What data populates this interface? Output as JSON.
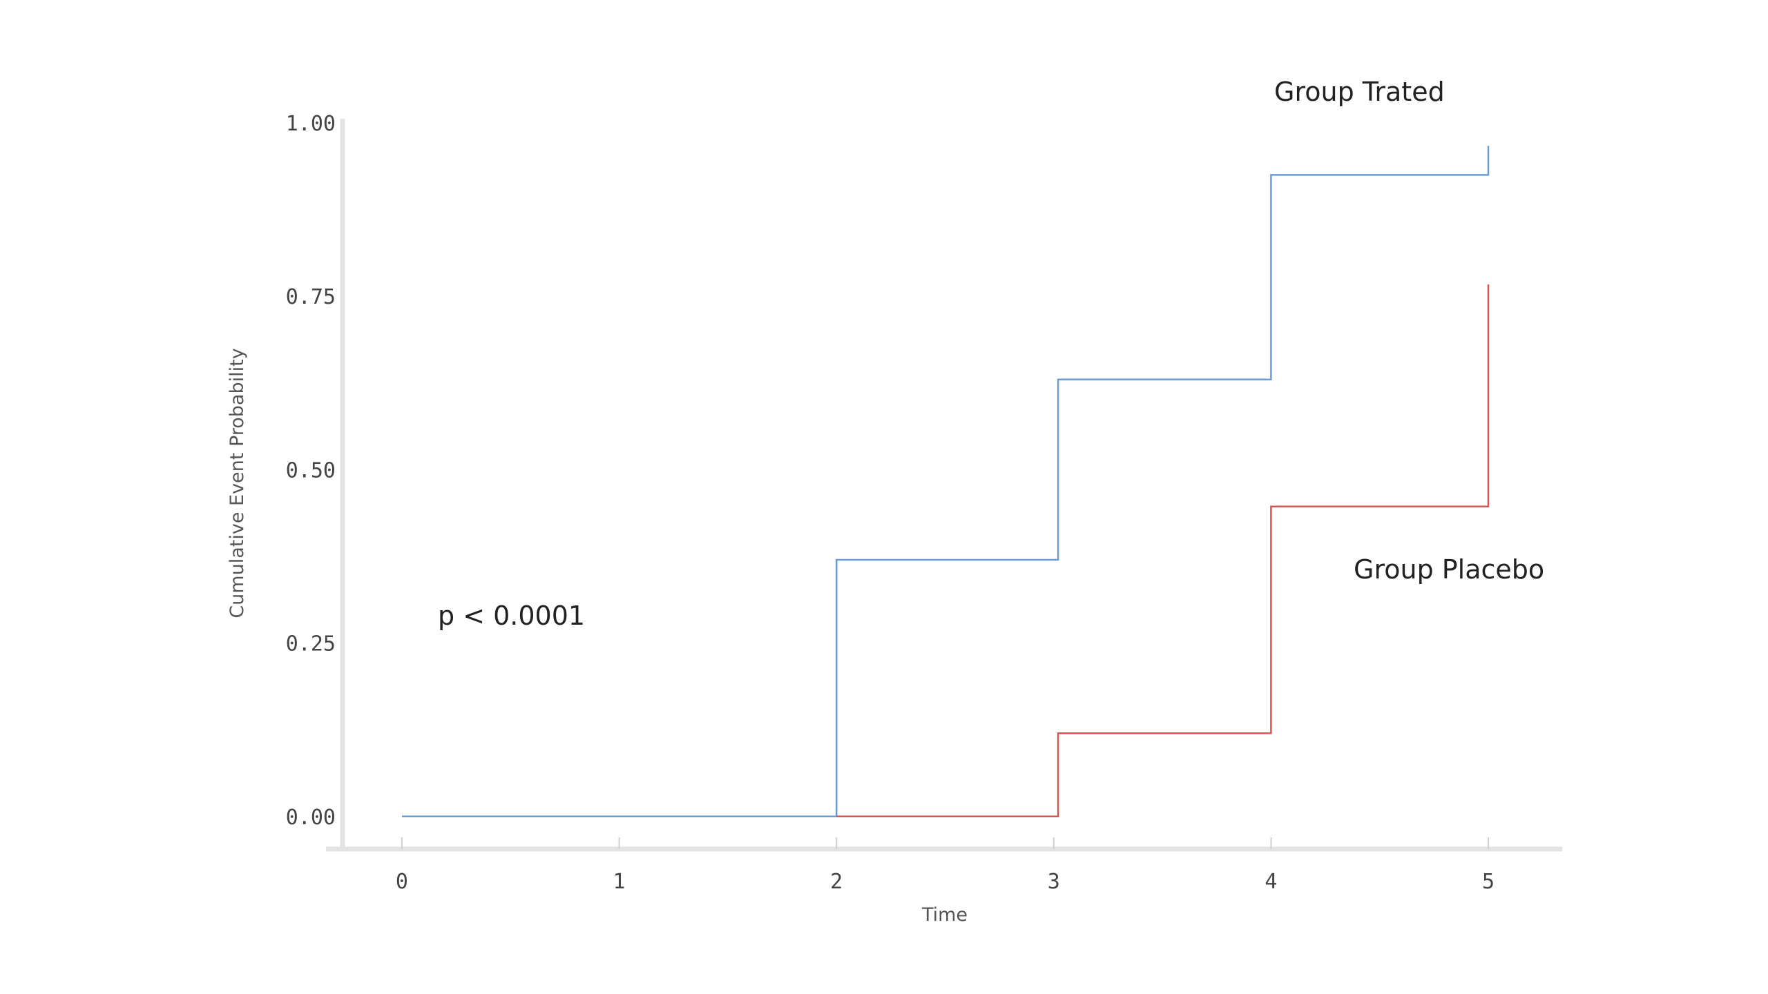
{
  "chart_data": {
    "type": "line",
    "step": true,
    "xlabel": "Time",
    "ylabel": "Cumulative Event Probability",
    "xlim": [
      -0.34,
      5.34
    ],
    "ylim": [
      -0.05,
      1.01
    ],
    "x_ticks": [
      "0",
      "1",
      "2",
      "3",
      "4",
      "5"
    ],
    "y_ticks": [
      "0.00",
      "0.25",
      "0.50",
      "0.75",
      "1.00"
    ],
    "grid": false,
    "legend": "none",
    "series": [
      {
        "name": "Group Trated",
        "color": "#6b9bd1",
        "points": [
          [
            0,
            0.0
          ],
          [
            2,
            0.0
          ],
          [
            2,
            0.37
          ],
          [
            3.02,
            0.37
          ],
          [
            3.02,
            0.63
          ],
          [
            4,
            0.63
          ],
          [
            4,
            0.925
          ],
          [
            5,
            0.925
          ],
          [
            5,
            0.967
          ]
        ]
      },
      {
        "name": "Group Placebo",
        "color": "#d9534f",
        "points": [
          [
            2,
            0.0
          ],
          [
            3.02,
            0.0
          ],
          [
            3.02,
            0.12
          ],
          [
            4,
            0.12
          ],
          [
            4,
            0.447
          ],
          [
            5,
            0.447
          ],
          [
            5,
            0.767
          ]
        ]
      }
    ],
    "annotations": [
      {
        "text": "p < 0.0001"
      }
    ]
  }
}
